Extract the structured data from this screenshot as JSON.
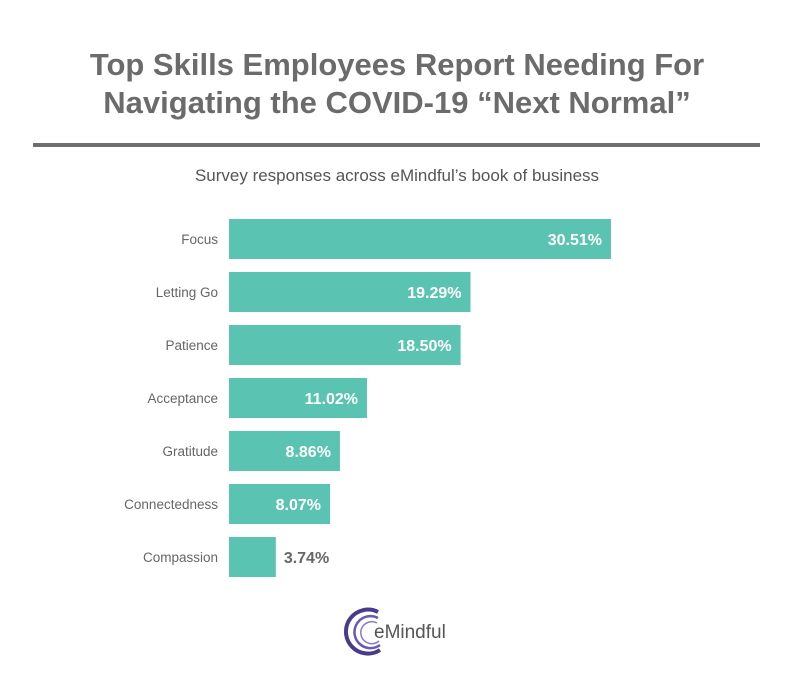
{
  "title_lines": [
    "Top Skills Employees Report Needing For",
    "Navigating the COVID-19 “Next Normal”"
  ],
  "subtitle": "Survey responses across eMindful’s book of business",
  "logo": "eMindful",
  "chart_data": {
    "type": "bar",
    "orientation": "horizontal",
    "title": "Top Skills Employees Report Needing For Navigating the COVID-19 “Next Normal”",
    "categories": [
      "Focus",
      "Letting Go",
      "Patience",
      "Acceptance",
      "Gratitude",
      "Connectedness",
      "Compassion"
    ],
    "values": [
      30.51,
      19.29,
      18.5,
      11.02,
      8.86,
      8.07,
      3.74
    ],
    "labels": [
      "30.51%",
      "19.29%",
      "18.50%",
      "11.02%",
      "8.86%",
      "8.07%",
      "3.74%"
    ],
    "xlim": [
      0,
      30.51
    ],
    "grid": false,
    "bar_color": "#5bc3b1"
  }
}
